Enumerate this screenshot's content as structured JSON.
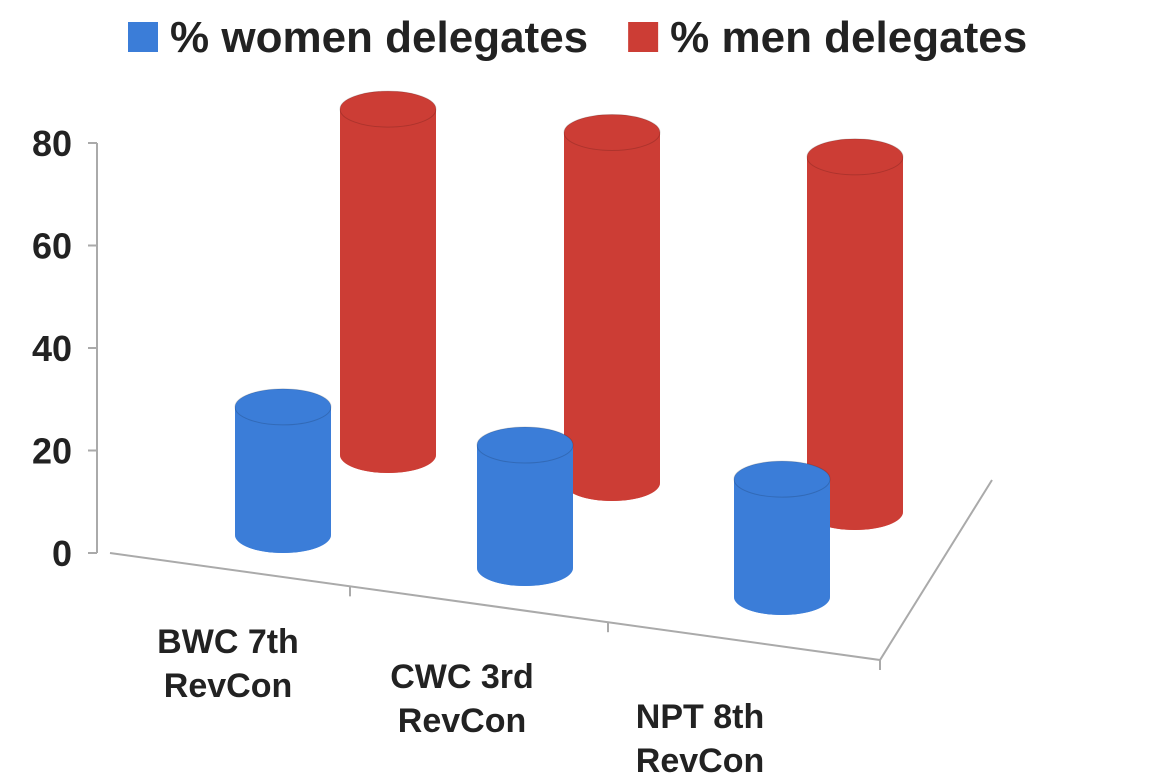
{
  "chart_data": {
    "type": "bar3d",
    "categories": [
      "BWC 7th\nRevCon",
      "CWC 3rd\nRevCon",
      "NPT 8th\nRevCon"
    ],
    "series": [
      {
        "name": "% women delegates",
        "color": "#3b7dd8",
        "values": [
          25,
          24,
          23
        ]
      },
      {
        "name": "% men delegates",
        "color": "#cc3d35",
        "values": [
          75,
          76,
          77
        ]
      }
    ],
    "ylim": [
      0,
      80
    ],
    "yticks": [
      0,
      20,
      40,
      60,
      80
    ],
    "legend": "top"
  }
}
